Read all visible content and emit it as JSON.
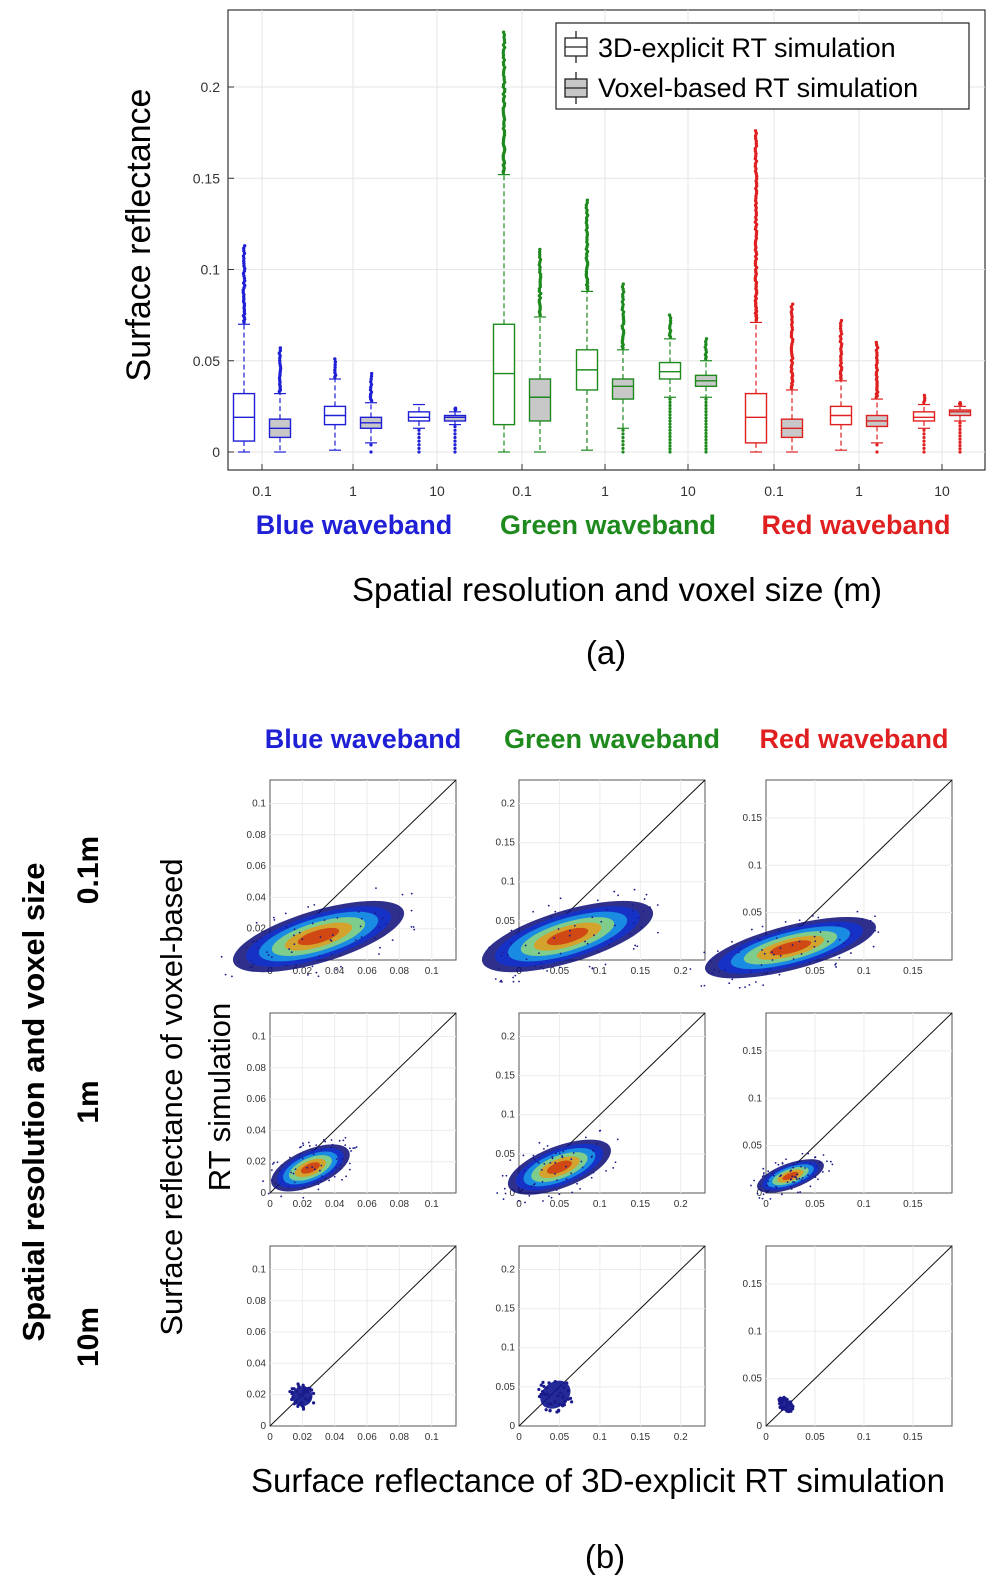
{
  "panel_a": {
    "label": "(a)",
    "ylabel": "Surface reflectance",
    "xlabel": "Spatial resolution and voxel size (m)",
    "yticks": [
      "0",
      "0.05",
      "0.1",
      "0.15",
      "0.2"
    ],
    "xticks": [
      "0.1",
      "1",
      "10",
      "0.1",
      "1",
      "10",
      "0.1",
      "1",
      "10"
    ],
    "groups": [
      {
        "label": "Blue waveband",
        "color": "#1f1fd6"
      },
      {
        "label": "Green waveband",
        "color": "#1e8a1e"
      },
      {
        "label": "Red waveband",
        "color": "#e02020"
      }
    ],
    "legend": [
      "3D-explicit RT simulation",
      "Voxel-based RT simulation"
    ],
    "legend_position": "top-right"
  },
  "panel_b": {
    "label": "(b)",
    "ylabel_line1": "Surface reflectance of voxel-based",
    "ylabel_line2": "RT simulation",
    "xlabel": "Surface reflectance of 3D-explicit RT simulation",
    "rows_title": "Spatial resolution and voxel size",
    "row_labels": [
      "0.1m",
      "1m",
      "10m"
    ],
    "col_labels": [
      "Blue waveband",
      "Green waveband",
      "Red waveband"
    ],
    "col_colors": [
      "#1f1fd6",
      "#1e8a1e",
      "#e02020"
    ],
    "ticks": [
      [
        "0",
        "0.02",
        "0.04",
        "0.06",
        "0.08",
        "0.1"
      ],
      [
        "0",
        "0.05",
        "0.1",
        "0.15",
        "0.2"
      ],
      [
        "0",
        "0.05",
        "0.1",
        "0.15"
      ]
    ]
  },
  "chart_data": [
    {
      "type": "box",
      "ylabel": "Surface reflectance",
      "xlabel": "Spatial resolution and voxel size (m)",
      "ylim": [
        0,
        0.23
      ],
      "categories": [
        "Blue 0.1",
        "Blue 1",
        "Blue 10",
        "Green 0.1",
        "Green 1",
        "Green 10",
        "Red 0.1",
        "Red 1",
        "Red 10"
      ],
      "series": [
        {
          "name": "3D-explicit RT simulation",
          "fill": "none",
          "boxes": [
            {
              "q1": 0.006,
              "median": 0.019,
              "q3": 0.032,
              "whisker_low": 0,
              "whisker_high": 0.07,
              "outlier_max": 0.113
            },
            {
              "q1": 0.015,
              "median": 0.02,
              "q3": 0.025,
              "whisker_low": 0.001,
              "whisker_high": 0.04,
              "outlier_max": 0.051
            },
            {
              "q1": 0.017,
              "median": 0.019,
              "q3": 0.022,
              "whisker_low": 0.013,
              "whisker_high": 0.026,
              "outlier_max": 0.027
            },
            {
              "q1": 0.015,
              "median": 0.043,
              "q3": 0.07,
              "whisker_low": 0,
              "whisker_high": 0.152,
              "outlier_max": 0.23
            },
            {
              "q1": 0.034,
              "median": 0.045,
              "q3": 0.056,
              "whisker_low": 0.001,
              "whisker_high": 0.088,
              "outlier_max": 0.138
            },
            {
              "q1": 0.04,
              "median": 0.044,
              "q3": 0.049,
              "whisker_low": 0.03,
              "whisker_high": 0.062,
              "outlier_max": 0.075
            },
            {
              "q1": 0.005,
              "median": 0.019,
              "q3": 0.032,
              "whisker_low": 0,
              "whisker_high": 0.071,
              "outlier_max": 0.176
            },
            {
              "q1": 0.015,
              "median": 0.02,
              "q3": 0.025,
              "whisker_low": 0.001,
              "whisker_high": 0.039,
              "outlier_max": 0.072
            },
            {
              "q1": 0.017,
              "median": 0.019,
              "q3": 0.022,
              "whisker_low": 0.013,
              "whisker_high": 0.026,
              "outlier_max": 0.031
            }
          ]
        },
        {
          "name": "Voxel-based RT simulation",
          "fill": "#c8c8c8",
          "boxes": [
            {
              "q1": 0.008,
              "median": 0.013,
              "q3": 0.018,
              "whisker_low": 0,
              "whisker_high": 0.032,
              "outlier_max": 0.057
            },
            {
              "q1": 0.013,
              "median": 0.016,
              "q3": 0.019,
              "whisker_low": 0.005,
              "whisker_high": 0.027,
              "outlier_max": 0.043
            },
            {
              "q1": 0.017,
              "median": 0.019,
              "q3": 0.02,
              "whisker_low": 0.015,
              "whisker_high": 0.022,
              "outlier_max": 0.024
            },
            {
              "q1": 0.017,
              "median": 0.03,
              "q3": 0.04,
              "whisker_low": 0,
              "whisker_high": 0.074,
              "outlier_max": 0.111
            },
            {
              "q1": 0.029,
              "median": 0.036,
              "q3": 0.04,
              "whisker_low": 0.013,
              "whisker_high": 0.056,
              "outlier_max": 0.092
            },
            {
              "q1": 0.036,
              "median": 0.039,
              "q3": 0.042,
              "whisker_low": 0.03,
              "whisker_high": 0.05,
              "outlier_max": 0.062
            },
            {
              "q1": 0.008,
              "median": 0.013,
              "q3": 0.018,
              "whisker_low": 0,
              "whisker_high": 0.034,
              "outlier_max": 0.081
            },
            {
              "q1": 0.014,
              "median": 0.017,
              "q3": 0.02,
              "whisker_low": 0.005,
              "whisker_high": 0.029,
              "outlier_max": 0.06
            },
            {
              "q1": 0.02,
              "median": 0.022,
              "q3": 0.023,
              "whisker_low": 0.017,
              "whisker_high": 0.025,
              "outlier_max": 0.027
            }
          ]
        }
      ]
    },
    {
      "type": "scatter",
      "subtype": "density scatter grid (3 x 3) with 1:1 line",
      "xlabel": "Surface reflectance of 3D-explicit RT simulation",
      "ylabel": "Surface reflectance of voxel-based RT simulation",
      "rows": [
        "0.1m",
        "1m",
        "10m"
      ],
      "columns": [
        "Blue waveband",
        "Green waveband",
        "Red waveband"
      ],
      "axis_limits": {
        "Blue waveband": [
          0,
          0.115
        ],
        "Green waveband": [
          0,
          0.23
        ],
        "Red waveband": [
          0,
          0.19
        ]
      },
      "panels": [
        {
          "row": "0.1m",
          "col": "Blue waveband",
          "center": [
            0.03,
            0.015
          ],
          "x_range": [
            0,
            0.11
          ],
          "y_max": 0.05
        },
        {
          "row": "0.1m",
          "col": "Green waveband",
          "center": [
            0.06,
            0.03
          ],
          "x_range": [
            0,
            0.22
          ],
          "y_max": 0.1
        },
        {
          "row": "0.1m",
          "col": "Red waveband",
          "center": [
            0.025,
            0.013
          ],
          "x_range": [
            0,
            0.18
          ],
          "y_max": 0.07
        },
        {
          "row": "1m",
          "col": "Blue waveband",
          "center": [
            0.025,
            0.016
          ],
          "x_range": [
            0,
            0.052
          ],
          "y_max": 0.035
        },
        {
          "row": "1m",
          "col": "Green waveband",
          "center": [
            0.05,
            0.033
          ],
          "x_range": [
            0,
            0.135
          ],
          "y_max": 0.08
        },
        {
          "row": "1m",
          "col": "Red waveband",
          "center": [
            0.025,
            0.018
          ],
          "x_range": [
            0,
            0.072
          ],
          "y_max": 0.04
        },
        {
          "row": "10m",
          "col": "Blue waveband",
          "center": [
            0.02,
            0.019
          ],
          "x_range": [
            0.014,
            0.028
          ],
          "y_max": 0.024
        },
        {
          "row": "10m",
          "col": "Green waveband",
          "center": [
            0.045,
            0.04
          ],
          "x_range": [
            0.03,
            0.075
          ],
          "y_max": 0.06
        },
        {
          "row": "10m",
          "col": "Red waveband",
          "center": [
            0.02,
            0.022
          ],
          "x_range": [
            0.015,
            0.027
          ],
          "y_max": 0.028
        }
      ]
    }
  ]
}
